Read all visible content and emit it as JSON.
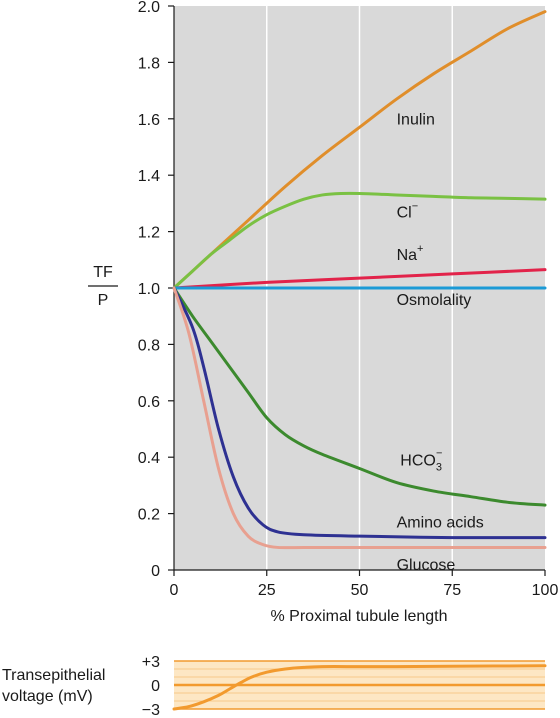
{
  "chart_data": [
    {
      "type": "line",
      "xlabel": "% Proximal tubule length",
      "ylabel_top": "TF",
      "ylabel_bottom": "P",
      "xlim": [
        0,
        100
      ],
      "ylim": [
        0,
        2.0
      ],
      "x_ticks": [
        "0",
        "25",
        "50",
        "75",
        "100"
      ],
      "y_ticks": [
        "0",
        "0.2",
        "0.4",
        "0.6",
        "0.8",
        "1.0",
        "1.2",
        "1.4",
        "1.6",
        "1.8",
        "2.0"
      ],
      "grid": true,
      "background": "#d9d9d9",
      "series": [
        {
          "name": "Inulin",
          "color": "#e08e2b",
          "x": [
            0,
            10,
            20,
            30,
            40,
            50,
            60,
            70,
            80,
            90,
            100
          ],
          "y": [
            1.0,
            1.12,
            1.24,
            1.36,
            1.47,
            1.57,
            1.67,
            1.76,
            1.84,
            1.92,
            1.98
          ]
        },
        {
          "name": "Cl⁻",
          "color": "#7ac143",
          "x": [
            0,
            5,
            10,
            15,
            20,
            25,
            30,
            35,
            40,
            45,
            50,
            60,
            70,
            80,
            90,
            100
          ],
          "y": [
            1.0,
            1.06,
            1.12,
            1.17,
            1.22,
            1.26,
            1.29,
            1.315,
            1.33,
            1.335,
            1.335,
            1.33,
            1.325,
            1.32,
            1.318,
            1.315
          ]
        },
        {
          "name": "Na⁺",
          "color": "#e2234a",
          "x": [
            0,
            25,
            50,
            75,
            100
          ],
          "y": [
            1.0,
            1.02,
            1.035,
            1.05,
            1.065
          ]
        },
        {
          "name": "Osmolality",
          "color": "#1b9ad6",
          "x": [
            0,
            100
          ],
          "y": [
            1.0,
            1.0
          ]
        },
        {
          "name": "HCO₃⁻",
          "color": "#3c8a2e",
          "x": [
            0,
            5,
            10,
            15,
            20,
            25,
            30,
            35,
            40,
            50,
            60,
            70,
            80,
            90,
            100
          ],
          "y": [
            1.0,
            0.9,
            0.81,
            0.72,
            0.63,
            0.54,
            0.48,
            0.44,
            0.41,
            0.36,
            0.31,
            0.28,
            0.26,
            0.24,
            0.23
          ]
        },
        {
          "name": "Amino acids",
          "color": "#2e3192",
          "x": [
            0,
            5,
            8,
            12,
            16,
            20,
            24,
            28,
            35,
            50,
            75,
            100
          ],
          "y": [
            1.0,
            0.86,
            0.72,
            0.5,
            0.33,
            0.22,
            0.16,
            0.135,
            0.125,
            0.12,
            0.115,
            0.115
          ]
        },
        {
          "name": "Glucose",
          "color": "#e8a090",
          "x": [
            0,
            4,
            8,
            12,
            16,
            20,
            24,
            28,
            35,
            50,
            75,
            100
          ],
          "y": [
            1.0,
            0.84,
            0.6,
            0.36,
            0.2,
            0.12,
            0.09,
            0.08,
            0.08,
            0.08,
            0.08,
            0.08
          ]
        }
      ],
      "labels": [
        {
          "text": "Inulin",
          "x": 60,
          "y": 1.58
        },
        {
          "text": "Cl",
          "sup": "−",
          "x": 60,
          "y": 1.25
        },
        {
          "text": "Na",
          "sup": "+",
          "x": 60,
          "y": 1.1
        },
        {
          "text": "Osmolality",
          "x": 60,
          "y": 0.94
        },
        {
          "text": "HCO",
          "sub": "3",
          "sup": "−",
          "x": 61,
          "y": 0.37
        },
        {
          "text": "Amino acids",
          "x": 60,
          "y": 0.15
        },
        {
          "text": "Glucose",
          "x": 60,
          "y": 0.0
        }
      ]
    },
    {
      "type": "line",
      "ylabel_line1": "Transepithelial",
      "ylabel_line2": "voltage (mV)",
      "xlim": [
        0,
        100
      ],
      "ylim": [
        -3,
        3
      ],
      "y_ticks": [
        "+3",
        "0",
        "−3"
      ],
      "background": "#fde7c4",
      "series": [
        {
          "name": "Transepithelial voltage",
          "color": "#f29a2e",
          "x": [
            0,
            4,
            8,
            12,
            15,
            18,
            21,
            25,
            30,
            35,
            40,
            50,
            60,
            75,
            100
          ],
          "y": [
            -3,
            -2.7,
            -2.1,
            -1.3,
            -0.5,
            0.3,
            1.0,
            1.6,
            2.0,
            2.2,
            2.3,
            2.3,
            2.3,
            2.35,
            2.4
          ]
        }
      ]
    }
  ]
}
